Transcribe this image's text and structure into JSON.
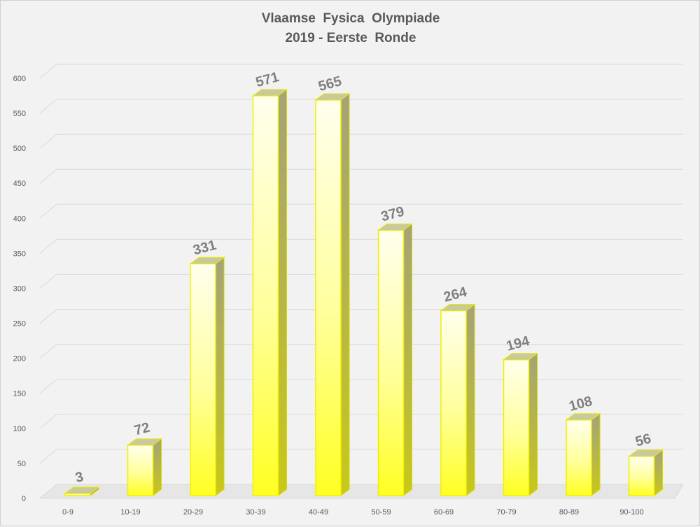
{
  "chart_data": {
    "type": "bar",
    "title": "Vlaamse  Fysica  Olympiade",
    "subtitle": "2019 - Eerste  Ronde",
    "xlabel": "",
    "ylabel": "",
    "categories": [
      "0-9",
      "10-19",
      "20-29",
      "30-39",
      "40-49",
      "50-59",
      "60-69",
      "70-79",
      "80-89",
      "90-100"
    ],
    "values": [
      3,
      72,
      331,
      571,
      565,
      379,
      264,
      194,
      108,
      56
    ],
    "yticks": [
      "0",
      "50",
      "100",
      "150",
      "200",
      "250",
      "300",
      "350",
      "400",
      "450",
      "500",
      "550",
      "600"
    ],
    "ylim": [
      0,
      600
    ],
    "grid": true,
    "legend": "none",
    "bar_color": "#ffff33",
    "label_color": "#7f7f7f"
  }
}
